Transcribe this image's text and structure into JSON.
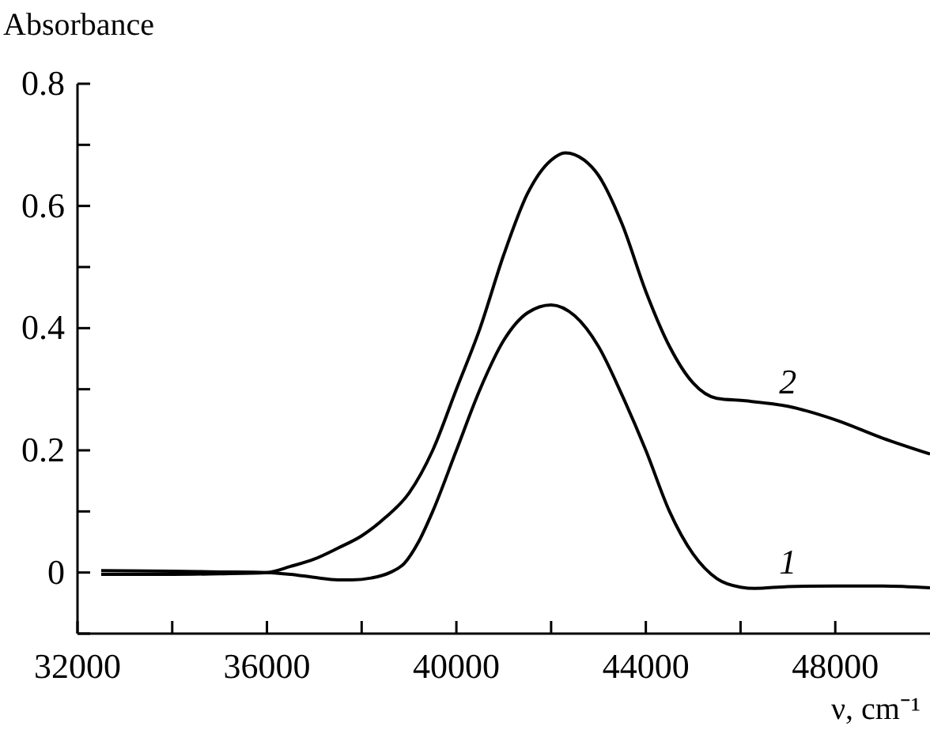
{
  "chart_data": {
    "type": "line",
    "xlabel": "ν, cm⁻¹",
    "ylabel": "Absorbance",
    "xlim": [
      32000,
      50000
    ],
    "ylim": [
      -0.1,
      0.8
    ],
    "xticks": [
      32000,
      {
        "value": 34000,
        "label": null
      },
      36000,
      {
        "value": 38000,
        "label": null
      },
      40000,
      {
        "value": 42000,
        "label": null
      },
      44000,
      {
        "value": 46000,
        "label": null
      },
      48000
    ],
    "yticks": [
      {
        "value": -0.1,
        "label": null
      },
      0,
      {
        "value": 0.1,
        "label": null
      },
      0.2,
      {
        "value": 0.3,
        "label": null
      },
      0.4,
      {
        "value": 0.5,
        "label": null
      },
      0.6,
      {
        "value": 0.7,
        "label": null
      },
      0.8
    ],
    "marker": "none",
    "line_style": "solid",
    "series": [
      {
        "name": "1",
        "color": "#000000",
        "x": [
          32500,
          34000,
          35000,
          36000,
          36500,
          37000,
          37500,
          37800,
          38200,
          38600,
          38900,
          39200,
          39500,
          40000,
          40500,
          41000,
          41500,
          42000,
          42500,
          43000,
          43500,
          44000,
          44500,
          45000,
          45500,
          46000,
          46300,
          47000,
          48000,
          49000,
          50000
        ],
        "values": [
          0.003,
          0.002,
          0.001,
          0.0,
          -0.003,
          -0.008,
          -0.012,
          -0.012,
          -0.009,
          0.0,
          0.015,
          0.05,
          0.1,
          0.2,
          0.3,
          0.38,
          0.425,
          0.438,
          0.42,
          0.37,
          0.29,
          0.2,
          0.1,
          0.03,
          -0.01,
          -0.024,
          -0.026,
          -0.023,
          -0.022,
          -0.022,
          -0.025
        ]
      },
      {
        "name": "2",
        "color": "#000000",
        "x": [
          32500,
          34000,
          35000,
          36000,
          36500,
          37000,
          37500,
          38000,
          38500,
          39000,
          39500,
          40000,
          40500,
          41000,
          41500,
          42000,
          42300,
          42700,
          43000,
          43500,
          44000,
          44500,
          45000,
          45500,
          46100,
          47000,
          48000,
          49000,
          50000
        ],
        "values": [
          -0.003,
          -0.003,
          -0.002,
          0.0,
          0.01,
          0.022,
          0.04,
          0.06,
          0.09,
          0.13,
          0.2,
          0.3,
          0.4,
          0.52,
          0.62,
          0.675,
          0.687,
          0.675,
          0.65,
          0.57,
          0.46,
          0.37,
          0.31,
          0.285,
          0.281,
          0.272,
          0.25,
          0.22,
          0.194
        ]
      }
    ]
  }
}
